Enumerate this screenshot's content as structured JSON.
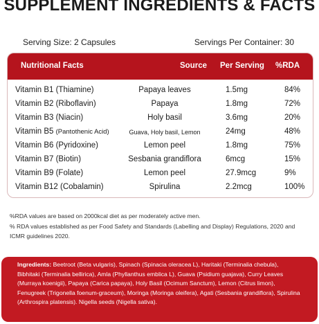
{
  "title": "SUPPLEMENT INGREDIENTS & FACTS",
  "serving_size": "Serving Size: 2 Capsules",
  "servings_per_container": "Servings Per Container: 30",
  "table": {
    "headers": {
      "nutrition": "Nutritional Facts",
      "source": "Source",
      "per_serving": "Per Serving",
      "rda": "%RDA"
    },
    "rows": [
      {
        "vitamin": "Vitamin B1 (Thiamine)",
        "sub": "",
        "source": "Papaya leaves",
        "per": "1.5mg",
        "rda": "84%"
      },
      {
        "vitamin": "Vitamin B2 (Riboflavin)",
        "sub": "",
        "source": "Papaya",
        "per": "1.8mg",
        "rda": "72%"
      },
      {
        "vitamin": "Vitamin B3 (Niacin)",
        "sub": "",
        "source": "Holy basil",
        "per": "3.6mg",
        "rda": "20%"
      },
      {
        "vitamin": "Vitamin B5",
        "sub": "(Pantothenic Acid)",
        "source": "Guava, Holy basil, Lemon",
        "per": "24mg",
        "rda": "48%"
      },
      {
        "vitamin": "Vitamin B6 (Pyridoxine)",
        "sub": "",
        "source": "Lemon peel",
        "per": "1.8mg",
        "rda": "75%"
      },
      {
        "vitamin": "Vitamin B7 (Biotin)",
        "sub": "",
        "source": "Sesbania grandiflora",
        "per": "6mcg",
        "rda": "15%"
      },
      {
        "vitamin": "Vitamin B9 (Folate)",
        "sub": "",
        "source": "Lemon peel",
        "per": "27.9mcg",
        "rda": "9%"
      },
      {
        "vitamin": "Vitamin B12 (Cobalamin)",
        "sub": "",
        "source": "Spirulina",
        "per": "2.2mcg",
        "rda": "100%"
      }
    ]
  },
  "notes": {
    "line1": "%RDA values are based on 2000kcal diet as per moderately active men.",
    "line2": "% RDA values established as per Food Safety and Standards (Labelling and Display) Regulations, 2020 and ICMR guidelines 2020."
  },
  "ingredients": {
    "label": "Ingredients:",
    "text": "Beetroot (Beta vulgaris), Spinach (Spinacia oleracea L), Haritaki (Terminalia chebula), Bibhitaki (Terminalia bellirica), Amla (Phyllanthus emblica L), Guava (Psidium guajava), Curry Leaves (Murraya koenigii), Papaya (Carica papaya), Holy Basil (Ocimum Sanctum), Lemon (Citrus limon), Fenugreek (Trigonella foenum-graceum), Moringa (Moringa oleifera), Agati (Sesbania grandiflora), Spirulina (Arthrospira platensis). Nigella seeds (Nigella sativa)."
  },
  "colors": {
    "accent": "#b5141d",
    "ingredients_bg": "#c21a22"
  }
}
